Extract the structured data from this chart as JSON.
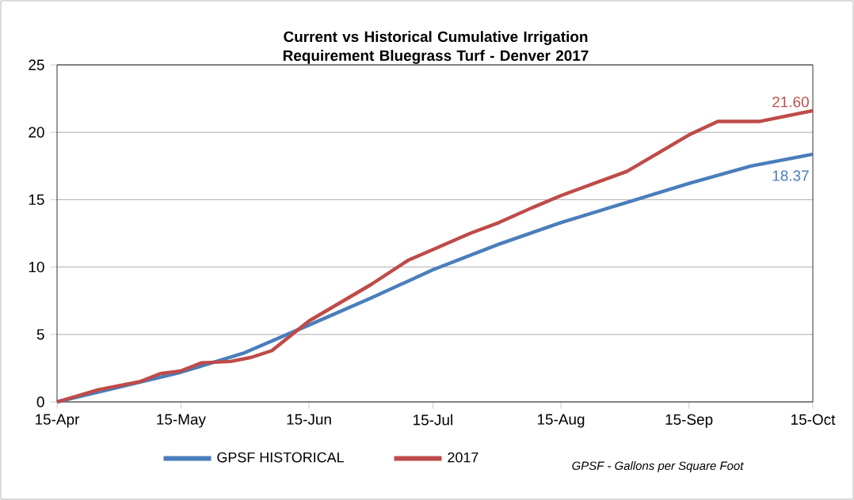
{
  "chart_data": {
    "type": "line",
    "title": "Current vs Historical Cumulative Irrigation Requirement Bluegrass Turf - Denver 2017",
    "series": [
      {
        "name": "GPSF HISTORICAL",
        "color": "#4a7ebb",
        "x": [
          "2017-04-15",
          "2017-04-30",
          "2017-05-15",
          "2017-05-30",
          "2017-06-15",
          "2017-06-30",
          "2017-07-15",
          "2017-07-31",
          "2017-08-15",
          "2017-08-31",
          "2017-09-15",
          "2017-09-30",
          "2017-10-15"
        ],
        "values": [
          0,
          1.1,
          2.2,
          3.6,
          5.7,
          7.7,
          9.8,
          11.7,
          13.3,
          14.8,
          16.2,
          17.5,
          18.37
        ],
        "value_labels": [
          null,
          null,
          null,
          null,
          null,
          null,
          null,
          null,
          null,
          null,
          null,
          null,
          "18.37"
        ]
      },
      {
        "name": "2017",
        "color": "#be4b48",
        "x": [
          "2017-04-15",
          "2017-04-25",
          "2017-05-05",
          "2017-05-10",
          "2017-05-15",
          "2017-05-20",
          "2017-05-27",
          "2017-06-01",
          "2017-06-06",
          "2017-06-15",
          "2017-06-30",
          "2017-07-09",
          "2017-07-15",
          "2017-07-24",
          "2017-07-31",
          "2017-08-08",
          "2017-08-15",
          "2017-08-31",
          "2017-09-15",
          "2017-09-22",
          "2017-10-02",
          "2017-10-15"
        ],
        "values": [
          0,
          0.9,
          1.5,
          2.1,
          2.3,
          2.9,
          3.0,
          3.3,
          3.8,
          6.0,
          8.7,
          10.5,
          11.3,
          12.5,
          13.3,
          14.4,
          15.3,
          17.1,
          19.8,
          20.8,
          20.8,
          21.6
        ],
        "value_labels": [
          null,
          null,
          null,
          null,
          null,
          null,
          null,
          null,
          null,
          null,
          null,
          null,
          null,
          null,
          null,
          null,
          null,
          null,
          null,
          null,
          null,
          "21.60"
        ]
      }
    ],
    "xlim": [
      "2017-04-15",
      "2017-10-15"
    ],
    "xticks": [
      {
        "value": "2017-04-15",
        "label": "15-Apr"
      },
      {
        "value": "2017-05-15",
        "label": "15-May"
      },
      {
        "value": "2017-06-15",
        "label": "15-Jun"
      },
      {
        "value": "2017-07-15",
        "label": "15-Jul"
      },
      {
        "value": "2017-08-15",
        "label": "15-Aug"
      },
      {
        "value": "2017-09-15",
        "label": "15-Sep"
      },
      {
        "value": "2017-10-15",
        "label": "15-Oct"
      }
    ],
    "ylim": [
      0,
      25
    ],
    "yticks": [
      0,
      5,
      10,
      15,
      20,
      25
    ],
    "grid": "y",
    "legend": "bottom",
    "annotations": [
      "GPSF - Gallons per Square Foot"
    ]
  }
}
